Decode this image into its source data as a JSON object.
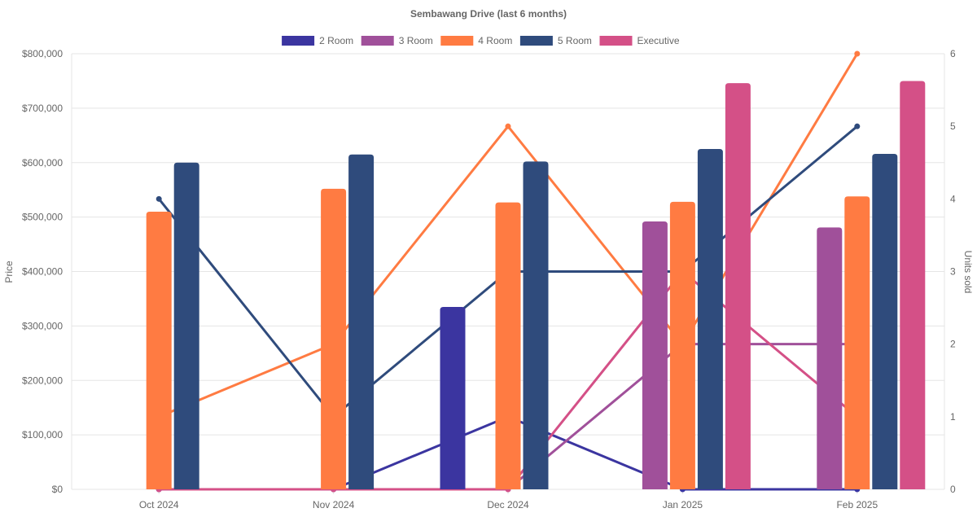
{
  "chart_data": {
    "type": "bar",
    "title": "Sembawang Drive (last 6 months)",
    "categories": [
      "Oct 2024",
      "Nov 2024",
      "Dec 2024",
      "Jan 2025",
      "Feb 2025"
    ],
    "ylabel": "Price",
    "y2label": "Units sold",
    "ylim": [
      0,
      800000
    ],
    "y2lim": [
      0,
      6
    ],
    "yticks": [
      "$0",
      "$100,000",
      "$200,000",
      "$300,000",
      "$400,000",
      "$500,000",
      "$600,000",
      "$700,000",
      "$800,000"
    ],
    "y2ticks": [
      "0",
      "1",
      "2",
      "3",
      "4",
      "5",
      "6"
    ],
    "grid": true,
    "legend_position": "top",
    "series": [
      {
        "name": "2 Room",
        "color": "#3b35a0",
        "price": [
          null,
          null,
          335000,
          null,
          null
        ],
        "units": [
          0,
          0,
          1,
          0,
          0
        ]
      },
      {
        "name": "3 Room",
        "color": "#a0509a",
        "price": [
          null,
          null,
          null,
          492000,
          481000
        ],
        "units": [
          0,
          0,
          0,
          2,
          2
        ]
      },
      {
        "name": "4 Room",
        "color": "#ff7b42",
        "price": [
          510000,
          552000,
          527000,
          528000,
          538000
        ],
        "units": [
          1,
          2,
          5,
          2,
          6
        ]
      },
      {
        "name": "5 Room",
        "color": "#2f4b7c",
        "price": [
          600000,
          615000,
          602000,
          625000,
          616000
        ],
        "units": [
          4,
          1,
          3,
          3,
          5
        ]
      },
      {
        "name": "Executive",
        "color": "#d45087",
        "price": [
          null,
          null,
          null,
          746000,
          750000
        ],
        "units": [
          0,
          0,
          0,
          3,
          1
        ]
      }
    ]
  }
}
